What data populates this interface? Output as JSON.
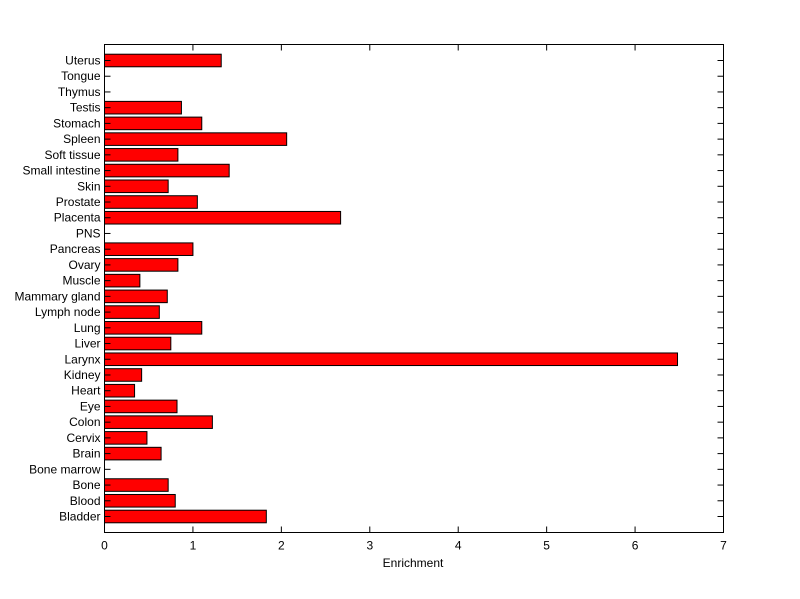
{
  "chart_data": {
    "type": "bar",
    "orientation": "horizontal",
    "title": "",
    "xlabel": "Enrichment",
    "ylabel": "",
    "xlim": [
      0,
      7
    ],
    "xticks": [
      0,
      1,
      2,
      3,
      4,
      5,
      6,
      7
    ],
    "grid": false,
    "bar_color": "#ff0000",
    "categories": [
      "Uterus",
      "Tongue",
      "Thymus",
      "Testis",
      "Stomach",
      "Spleen",
      "Soft tissue",
      "Small intestine",
      "Skin",
      "Prostate",
      "Placenta",
      "PNS",
      "Pancreas",
      "Ovary",
      "Muscle",
      "Mammary gland",
      "Lymph node",
      "Lung",
      "Liver",
      "Larynx",
      "Kidney",
      "Heart",
      "Eye",
      "Colon",
      "Cervix",
      "Brain",
      "Bone marrow",
      "Bone",
      "Blood",
      "Bladder"
    ],
    "values": [
      1.32,
      0,
      0,
      0.87,
      1.1,
      2.06,
      0.83,
      1.41,
      0.72,
      1.05,
      2.67,
      0,
      1.0,
      0.83,
      0.4,
      0.71,
      0.62,
      1.1,
      0.75,
      6.48,
      0.42,
      0.34,
      0.82,
      1.22,
      0.48,
      0.64,
      0,
      0.72,
      0.8,
      1.83
    ]
  }
}
